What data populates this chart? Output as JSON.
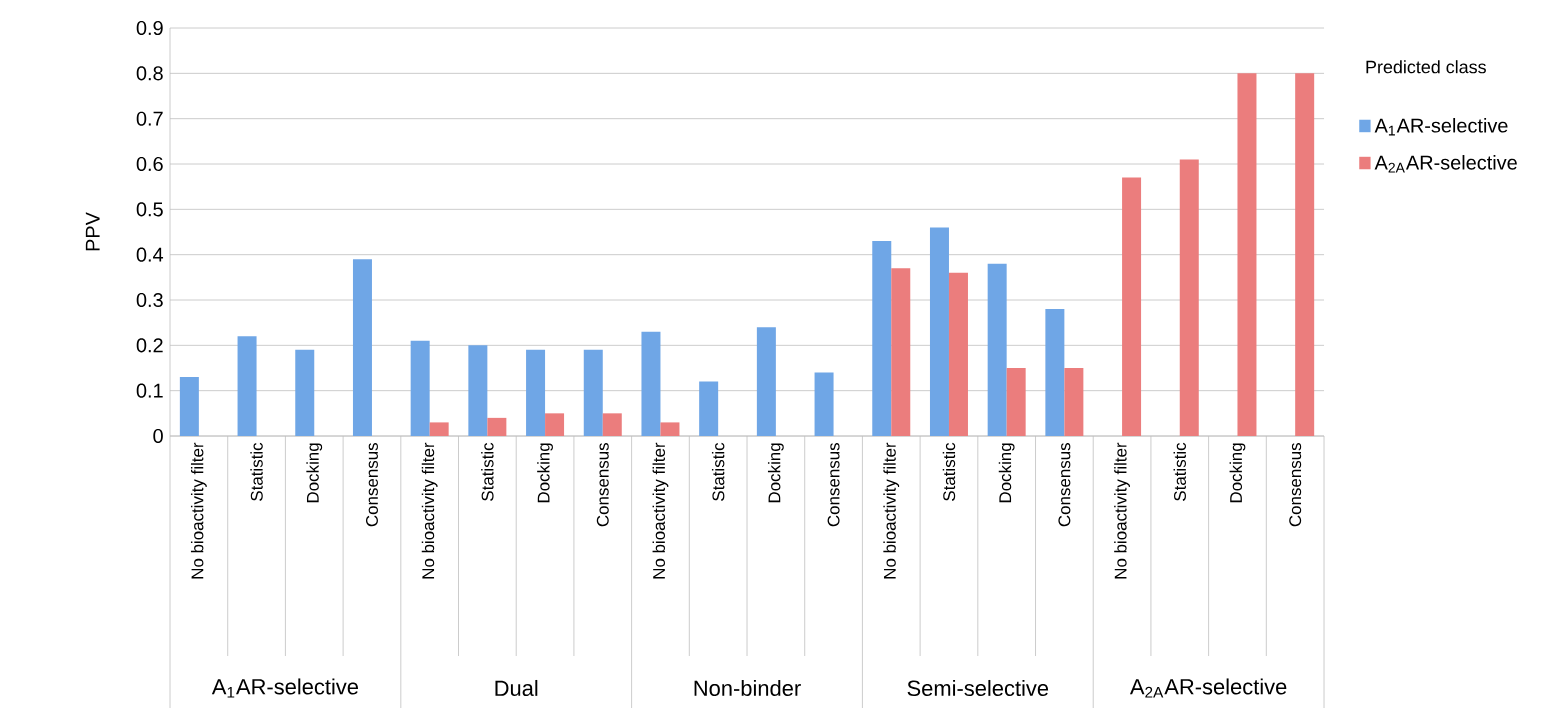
{
  "chart_data": {
    "type": "bar",
    "ylabel": "PPV",
    "legend_title": "Predicted class",
    "legend": "top right",
    "grid": "y",
    "categories": [
      "No bioactivity filter",
      "Statistic",
      "Docking",
      "Consensus",
      "No bioactivity filter",
      "Statistic",
      "Docking",
      "Consensus",
      "No bioactivity filter",
      "Statistic",
      "Docking",
      "Consensus",
      "No bioactivity filter",
      "Statistic",
      "Docking",
      "Consensus",
      "No bioactivity filter",
      "Statistic",
      "Docking",
      "Consensus"
    ],
    "annotations": [
      "A$_{1}$AR-selective",
      "Dual",
      "Non-binder",
      "Semi-selective",
      "A$_{2A}$AR-selective"
    ],
    "ylim": [
      0,
      0.9
    ],
    "yticks": [
      0,
      0.1,
      0.2,
      0.3,
      0.4,
      0.5,
      0.6,
      0.7,
      0.8,
      0.9
    ],
    "series": [
      {
        "name": "A$_{1}$AR-selective",
        "color": "#6fa6e6",
        "values": [
          0.13,
          0.22,
          0.19,
          0.39,
          0.21,
          0.2,
          0.19,
          0.19,
          0.23,
          0.12,
          0.24,
          0.14,
          0.43,
          0.46,
          0.38,
          0.28,
          null,
          null,
          null,
          null
        ]
      },
      {
        "name": "A$_{2A}$AR-selective",
        "color": "#eb7d7d",
        "values": [
          null,
          null,
          null,
          null,
          0.03,
          0.04,
          0.05,
          0.05,
          0.03,
          null,
          null,
          null,
          0.37,
          0.36,
          0.15,
          0.15,
          0.57,
          0.61,
          0.8,
          0.8
        ]
      }
    ]
  }
}
